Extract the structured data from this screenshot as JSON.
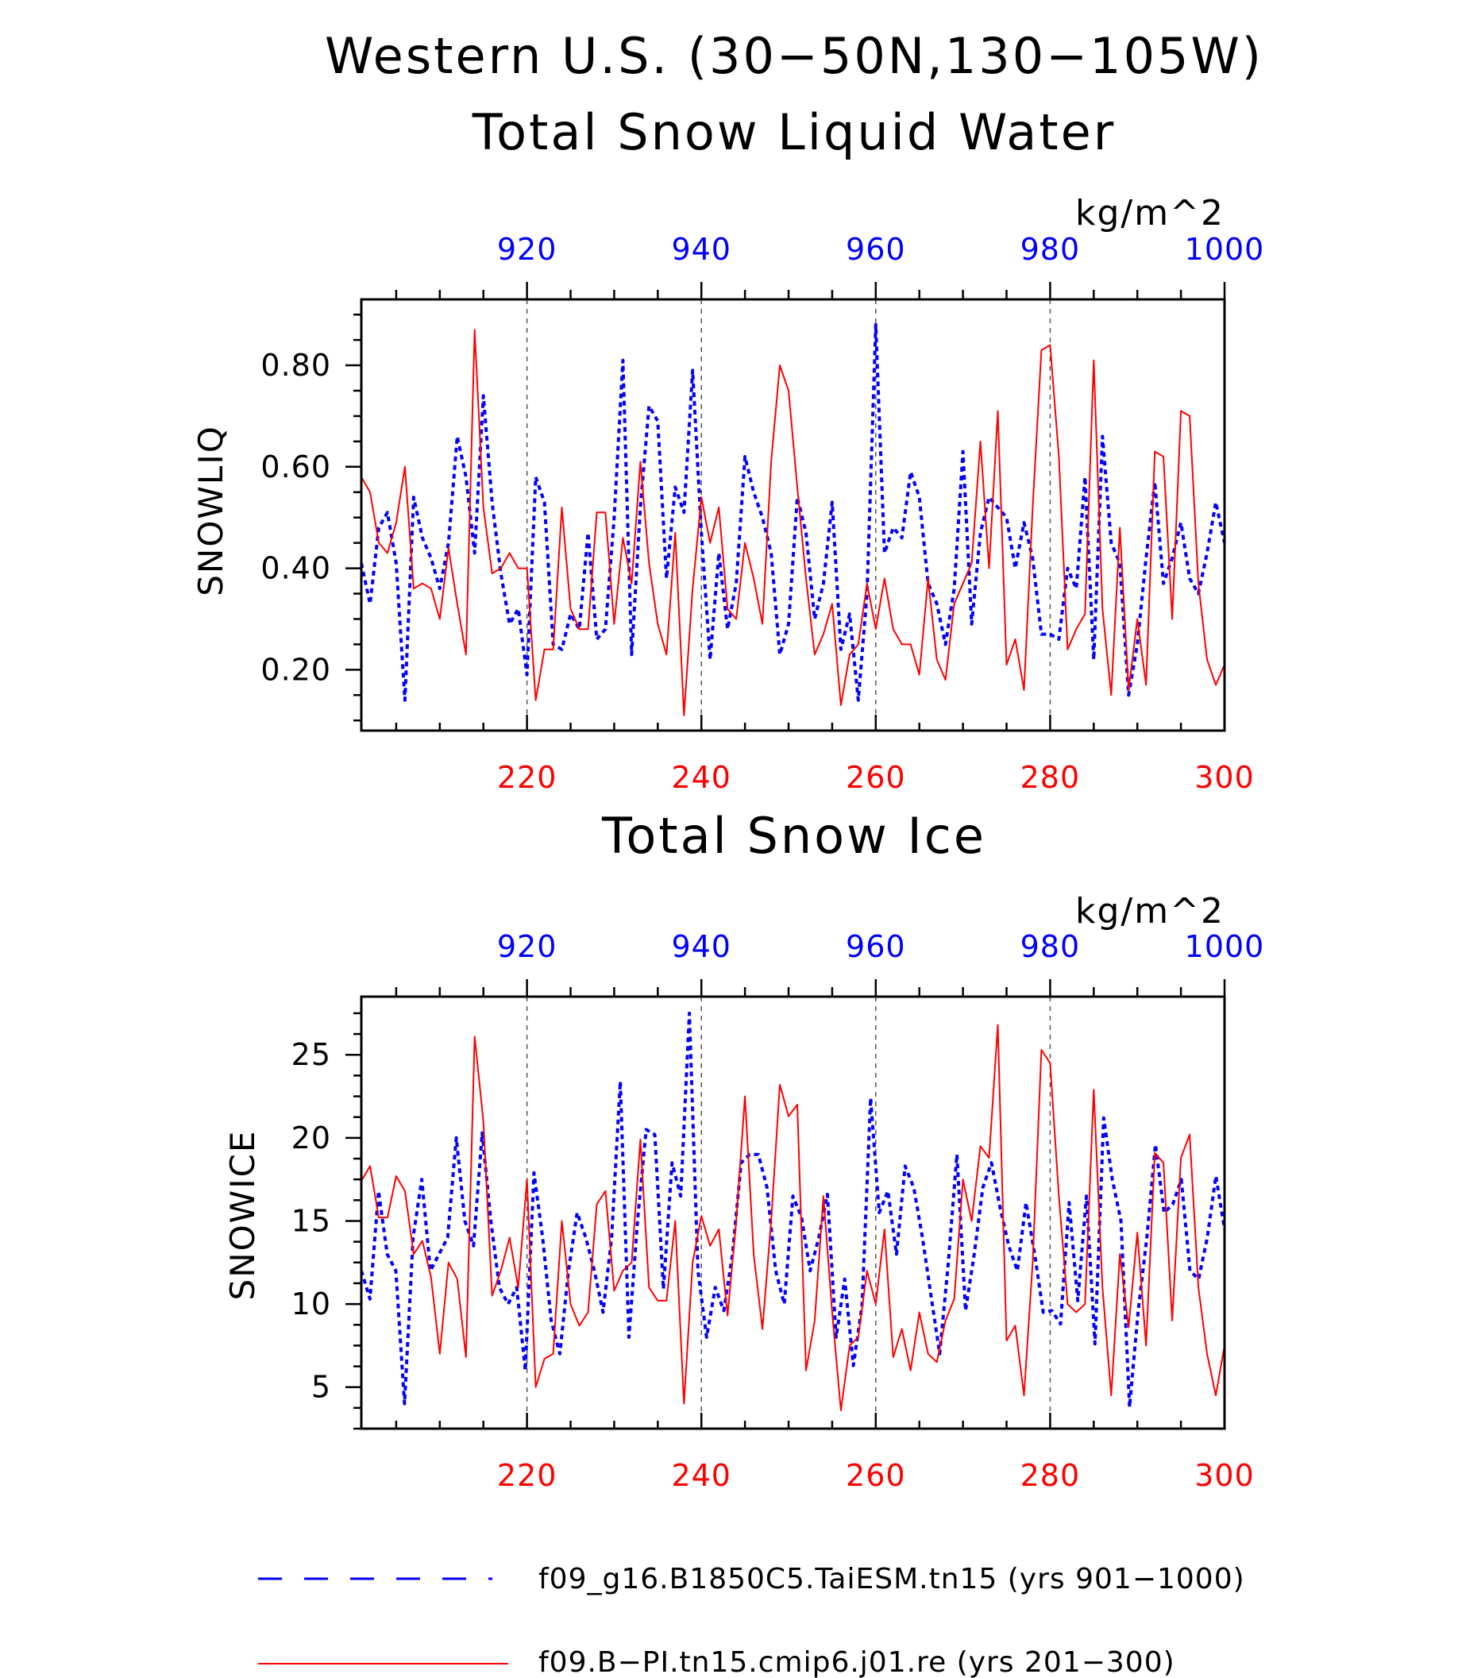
{
  "figure": {
    "title_line1": "Western U.S. (30−50N,130−105W)",
    "colors": {
      "series_a": "#0000ff",
      "series_b": "#ff0000",
      "axis": "#000000",
      "grid": "#555555"
    }
  },
  "chart_data": [
    {
      "type": "line",
      "title": "Total Snow Liquid Water",
      "ylabel": "SNOWLIQ",
      "units": "kg/m^2",
      "ylim": [
        0.08,
        0.93
      ],
      "yticks": [
        0.2,
        0.4,
        0.6,
        0.8
      ],
      "ytick_labels": [
        "0.20",
        "0.40",
        "0.60",
        "0.80"
      ],
      "x_bottom": {
        "range": [
          201,
          300
        ],
        "ticks": [
          220,
          240,
          260,
          280,
          300
        ],
        "labels": [
          "220",
          "240",
          "260",
          "280",
          "300"
        ]
      },
      "x_top": {
        "range": [
          901,
          1000
        ],
        "ticks": [
          920,
          940,
          960,
          980,
          1000
        ],
        "labels": [
          "920",
          "940",
          "960",
          "980",
          "1000"
        ]
      },
      "grid": "vertical dashed at ticks",
      "series": [
        {
          "axis": "top",
          "style": "dashed",
          "color": "#0000ff",
          "values": [
            0.41,
            0.33,
            0.48,
            0.51,
            0.41,
            0.14,
            0.54,
            0.46,
            0.42,
            0.36,
            0.45,
            0.66,
            0.58,
            0.43,
            0.74,
            0.53,
            0.39,
            0.29,
            0.32,
            0.19,
            0.58,
            0.53,
            0.25,
            0.24,
            0.31,
            0.28,
            0.47,
            0.26,
            0.28,
            0.5,
            0.81,
            0.23,
            0.52,
            0.72,
            0.69,
            0.38,
            0.56,
            0.51,
            0.79,
            0.47,
            0.22,
            0.43,
            0.28,
            0.37,
            0.62,
            0.55,
            0.5,
            0.43,
            0.23,
            0.29,
            0.54,
            0.47,
            0.3,
            0.37,
            0.53,
            0.24,
            0.31,
            0.14,
            0.35,
            0.88,
            0.43,
            0.48,
            0.46,
            0.59,
            0.54,
            0.37,
            0.33,
            0.25,
            0.36,
            0.63,
            0.29,
            0.47,
            0.54,
            0.52,
            0.5,
            0.4,
            0.49,
            0.42,
            0.27,
            0.27,
            0.26,
            0.4,
            0.36,
            0.58,
            0.22,
            0.66,
            0.45,
            0.41,
            0.15,
            0.25,
            0.42,
            0.57,
            0.37,
            0.42,
            0.49,
            0.38,
            0.35,
            0.43,
            0.53,
            0.45
          ]
        },
        {
          "axis": "bottom",
          "style": "solid",
          "color": "#ff0000",
          "values": [
            0.58,
            0.55,
            0.45,
            0.43,
            0.49,
            0.6,
            0.36,
            0.37,
            0.36,
            0.3,
            0.44,
            0.33,
            0.23,
            0.87,
            0.52,
            0.39,
            0.4,
            0.43,
            0.4,
            0.4,
            0.14,
            0.24,
            0.24,
            0.52,
            0.32,
            0.28,
            0.28,
            0.51,
            0.51,
            0.29,
            0.46,
            0.37,
            0.61,
            0.41,
            0.29,
            0.23,
            0.47,
            0.11,
            0.36,
            0.54,
            0.45,
            0.52,
            0.32,
            0.3,
            0.45,
            0.38,
            0.29,
            0.61,
            0.8,
            0.75,
            0.56,
            0.38,
            0.23,
            0.27,
            0.33,
            0.13,
            0.23,
            0.25,
            0.37,
            0.28,
            0.38,
            0.28,
            0.25,
            0.25,
            0.19,
            0.38,
            0.22,
            0.18,
            0.33,
            0.37,
            0.41,
            0.65,
            0.4,
            0.71,
            0.21,
            0.26,
            0.16,
            0.52,
            0.83,
            0.84,
            0.62,
            0.24,
            0.28,
            0.31,
            0.81,
            0.32,
            0.15,
            0.48,
            0.16,
            0.3,
            0.17,
            0.63,
            0.62,
            0.3,
            0.71,
            0.7,
            0.37,
            0.22,
            0.17,
            0.21
          ]
        }
      ]
    },
    {
      "type": "line",
      "title": "Total Snow Ice",
      "ylabel": "SNOWICE",
      "units": "kg/m^2",
      "ylim": [
        2.5,
        28.5
      ],
      "yticks": [
        5,
        10,
        15,
        20,
        25
      ],
      "ytick_labels": [
        "5",
        "10",
        "15",
        "20",
        "25"
      ],
      "x_bottom": {
        "range": [
          201,
          300
        ],
        "ticks": [
          220,
          240,
          260,
          280,
          300
        ],
        "labels": [
          "220",
          "240",
          "260",
          "280",
          "300"
        ]
      },
      "x_top": {
        "range": [
          901,
          1000
        ],
        "ticks": [
          920,
          940,
          960,
          980,
          1000
        ],
        "labels": [
          "920",
          "940",
          "960",
          "980",
          "1000"
        ]
      },
      "grid": "vertical dashed at ticks",
      "series": [
        {
          "axis": "top",
          "style": "dashed",
          "color": "#0000ff",
          "values": [
            12.0,
            10.3,
            16.8,
            13.0,
            12.0,
            4.0,
            14.0,
            17.5,
            12.0,
            13.0,
            14.0,
            20.0,
            15.0,
            13.5,
            20.3,
            15.0,
            11.0,
            10.0,
            11.0,
            6.0,
            17.9,
            14.0,
            9.0,
            7.0,
            12.0,
            15.5,
            14.0,
            12.0,
            9.5,
            14.0,
            23.4,
            8.0,
            15.0,
            20.5,
            20.2,
            10.9,
            18.5,
            16.5,
            27.5,
            12.0,
            8.0,
            11.0,
            9.6,
            13.0,
            18.5,
            19.0,
            19.0,
            17.0,
            12.0,
            10.0,
            16.5,
            15.2,
            12.0,
            14.0,
            16.6,
            8.0,
            11.5,
            6.3,
            9.9,
            22.4,
            15.5,
            16.8,
            13.0,
            18.3,
            17.0,
            14.0,
            10.5,
            7.0,
            12.5,
            19.0,
            9.6,
            13.0,
            17.0,
            18.5,
            15.8,
            13.5,
            12.0,
            16.1,
            13.0,
            9.5,
            9.6,
            8.8,
            16.1,
            10.2,
            16.5,
            7.6,
            21.2,
            17.5,
            15.0,
            3.8,
            9.6,
            14.0,
            19.6,
            15.5,
            16.0,
            17.5,
            12.0,
            11.5,
            14.0,
            17.7,
            14.5
          ]
        },
        {
          "axis": "bottom",
          "style": "solid",
          "color": "#ff0000",
          "values": [
            17.4,
            18.3,
            15.2,
            15.2,
            17.7,
            16.8,
            13.0,
            13.8,
            11.6,
            7.0,
            12.5,
            11.5,
            6.8,
            26.1,
            21.0,
            10.5,
            12.0,
            14.0,
            11.0,
            17.5,
            5.0,
            6.7,
            7.0,
            15.0,
            10.0,
            8.7,
            9.5,
            16.0,
            16.8,
            10.8,
            12.0,
            12.5,
            19.9,
            11.0,
            10.2,
            10.2,
            15.0,
            4.0,
            12.5,
            15.3,
            13.5,
            14.5,
            9.3,
            15.0,
            22.5,
            13.0,
            8.5,
            15.0,
            23.2,
            21.3,
            22.0,
            6.0,
            9.0,
            16.5,
            9.5,
            3.6,
            7.5,
            8.0,
            12.0,
            10.0,
            14.5,
            6.8,
            8.5,
            6.0,
            9.5,
            7.0,
            6.5,
            9.0,
            10.3,
            17.5,
            15.0,
            19.5,
            18.8,
            26.8,
            7.8,
            8.7,
            4.5,
            12.5,
            25.3,
            24.5,
            16.5,
            10.0,
            9.5,
            10.0,
            22.9,
            11.0,
            4.5,
            13.0,
            8.6,
            14.3,
            7.5,
            19.1,
            18.5,
            9.0,
            18.8,
            20.2,
            11.0,
            7.0,
            4.5,
            7.5
          ]
        }
      ]
    }
  ],
  "legend": [
    {
      "label": "f09_g16.B1850C5.TaiESM.tn15 (yrs 901−1000)",
      "style": "dashed",
      "color": "#0000ff"
    },
    {
      "label": "f09.B−PI.tn15.cmip6.j01.re (yrs 201−300)",
      "style": "solid",
      "color": "#ff0000"
    }
  ]
}
